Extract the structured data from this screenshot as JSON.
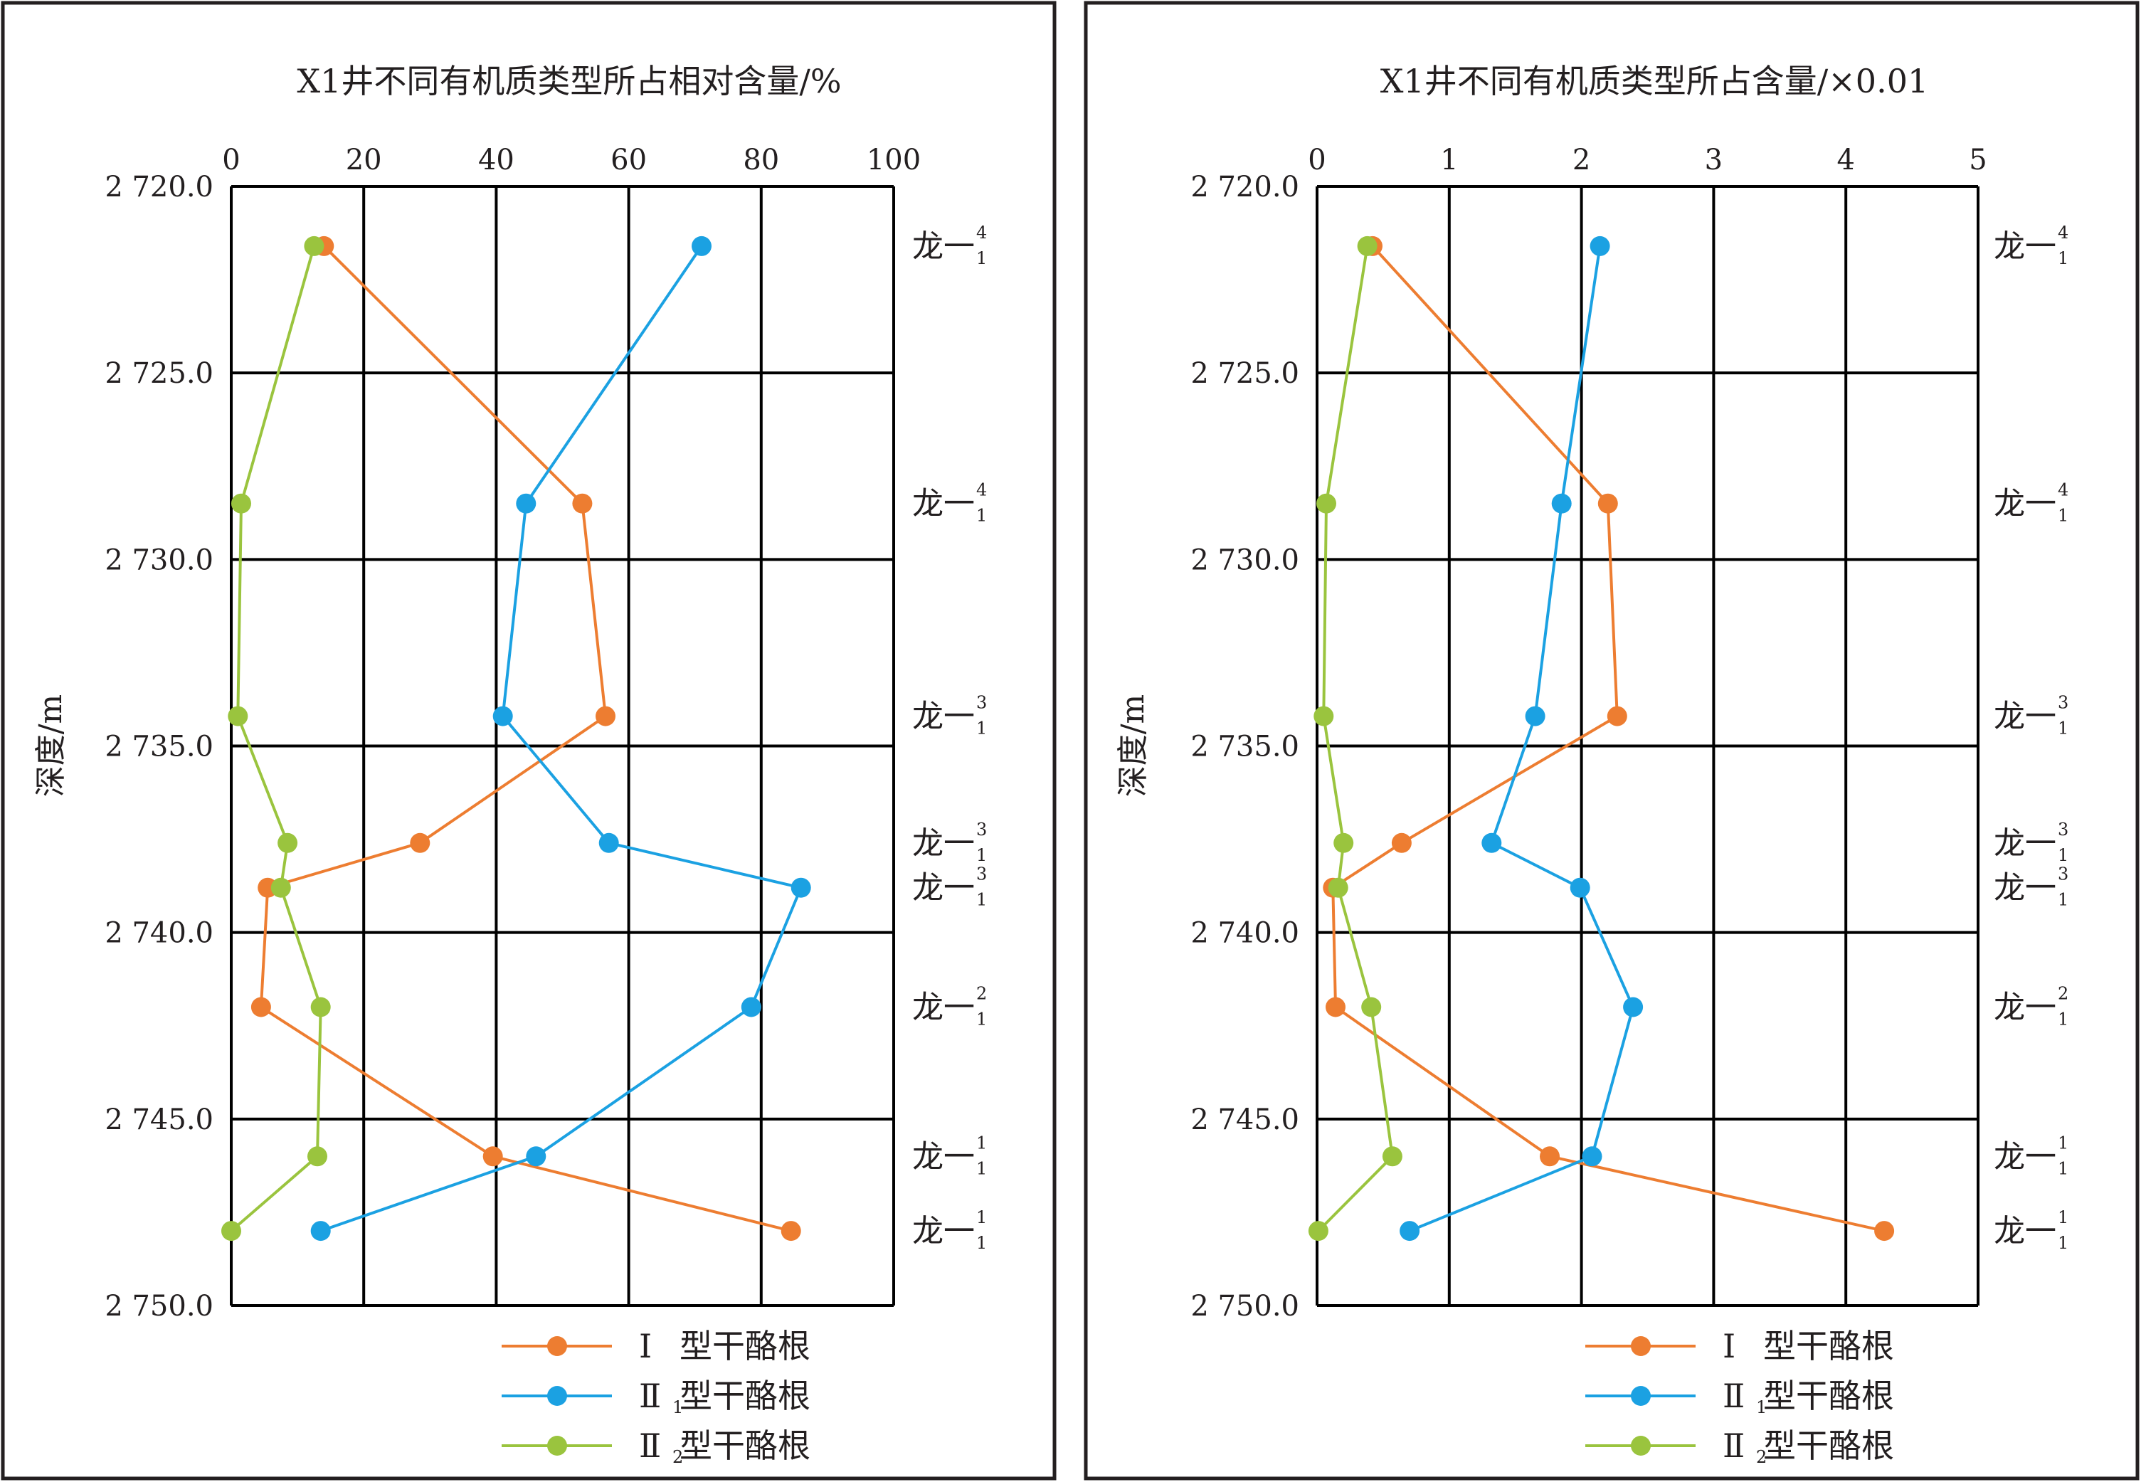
{
  "colors": {
    "I": "#ed7d31",
    "II1": "#1ba1e2",
    "II2": "#9ac43e",
    "grid": "#000000",
    "text": "#231f20"
  },
  "zone_labels": [
    {
      "base": "龙一",
      "sup": "4",
      "sub": "1",
      "depth": 2721.6
    },
    {
      "base": "龙一",
      "sup": "4",
      "sub": "1",
      "depth": 2728.5
    },
    {
      "base": "龙一",
      "sup": "3",
      "sub": "1",
      "depth": 2734.2
    },
    {
      "base": "龙一",
      "sup": "3",
      "sub": "1",
      "depth": 2737.6
    },
    {
      "base": "龙一",
      "sup": "3",
      "sub": "1",
      "depth": 2738.8
    },
    {
      "base": "龙一",
      "sup": "2",
      "sub": "1",
      "depth": 2742.0
    },
    {
      "base": "龙一",
      "sup": "1",
      "sub": "1",
      "depth": 2746.0
    },
    {
      "base": "龙一",
      "sup": "1",
      "sub": "1",
      "depth": 2748.0
    }
  ],
  "legend": [
    {
      "key": "I",
      "roman": "Ⅰ",
      "sub": "",
      "text": "型干酪根"
    },
    {
      "key": "II1",
      "roman": "Ⅱ",
      "sub": "1",
      "text": "型干酪根"
    },
    {
      "key": "II2",
      "roman": "Ⅱ",
      "sub": "2",
      "text": "型干酪根"
    }
  ],
  "chart_data": [
    {
      "type": "line",
      "title": "X1井不同有机质类型所占相对含量/%",
      "ylabel": "深度/m",
      "xlim": [
        0,
        100
      ],
      "x_ticks": [
        "0",
        "20",
        "40",
        "60",
        "80",
        "100"
      ],
      "ylim": [
        2720.0,
        2750.0
      ],
      "y_ticks": [
        "2 720.0",
        "2 725.0",
        "2 730.0",
        "2 735.0",
        "2 740.0",
        "2 745.0",
        "2 750.0"
      ],
      "y_reversed": true,
      "grid": true,
      "legend_position": "bottom-right",
      "depths": [
        2721.6,
        2728.5,
        2734.2,
        2737.6,
        2738.8,
        2742.0,
        2746.0,
        2748.0
      ],
      "series": [
        {
          "name": "Ⅰ型干酪根",
          "key": "I",
          "values": [
            14,
            53,
            56.5,
            28.5,
            5.5,
            4.5,
            39.5,
            84.5
          ]
        },
        {
          "name": "Ⅱ1型干酪根",
          "key": "II1",
          "values": [
            71,
            44.5,
            41,
            57,
            86,
            78.5,
            46,
            13.5
          ]
        },
        {
          "name": "Ⅱ2型干酪根",
          "key": "II2",
          "values": [
            12.5,
            1.5,
            1,
            8.5,
            7.5,
            13.5,
            13,
            0
          ]
        }
      ]
    },
    {
      "type": "line",
      "title": "X1井不同有机质类型所占含量/×0.01",
      "ylabel": "深度/m",
      "xlim": [
        0,
        5
      ],
      "x_ticks": [
        "0",
        "1",
        "2",
        "3",
        "4",
        "5"
      ],
      "ylim": [
        2720.0,
        2750.0
      ],
      "y_ticks": [
        "2 720.0",
        "2 725.0",
        "2 730.0",
        "2 735.0",
        "2 740.0",
        "2 745.0",
        "2 750.0"
      ],
      "y_reversed": true,
      "grid": true,
      "legend_position": "bottom-right",
      "depths": [
        2721.6,
        2728.5,
        2734.2,
        2737.6,
        2738.8,
        2742.0,
        2746.0,
        2748.0
      ],
      "series": [
        {
          "name": "Ⅰ型干酪根",
          "key": "I",
          "values": [
            0.42,
            2.2,
            2.27,
            0.64,
            0.12,
            0.14,
            1.76,
            4.29
          ]
        },
        {
          "name": "Ⅱ1型干酪根",
          "key": "II1",
          "values": [
            2.14,
            1.85,
            1.65,
            1.32,
            1.99,
            2.39,
            2.08,
            0.7
          ]
        },
        {
          "name": "Ⅱ2型干酪根",
          "key": "II2",
          "values": [
            0.38,
            0.07,
            0.05,
            0.2,
            0.16,
            0.41,
            0.57,
            0.01
          ]
        }
      ]
    }
  ]
}
